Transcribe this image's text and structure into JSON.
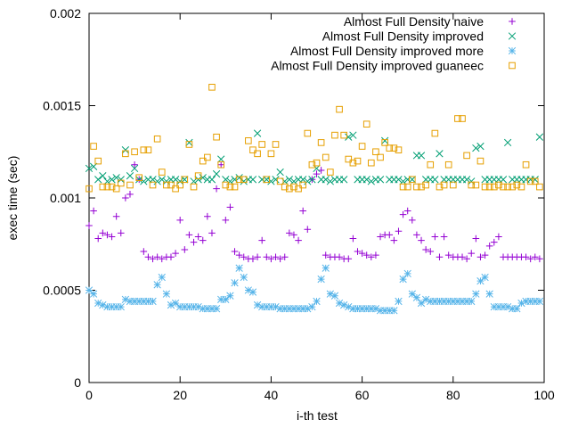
{
  "chart_data": {
    "type": "scatter",
    "title": "",
    "xlabel": "i-th test",
    "ylabel": "exec time (sec)",
    "xlim": [
      0,
      100
    ],
    "ylim": [
      0,
      0.002
    ],
    "x_ticks": [
      0,
      20,
      40,
      60,
      80,
      100
    ],
    "x_tick_labels": [
      "0",
      "20",
      "40",
      "60",
      "80",
      "100"
    ],
    "y_ticks": [
      0,
      0.0005,
      0.001,
      0.0015,
      0.002
    ],
    "y_tick_labels": [
      "0",
      "0.0005",
      "0.001",
      "0.0015",
      "0.002"
    ],
    "legend_position": "top-right",
    "grid": false,
    "series": [
      {
        "name": "Almost Full Density naive",
        "marker": "plus",
        "color": "#9400D3",
        "values": [
          0.00085,
          0.00093,
          0.00078,
          0.00081,
          0.0008,
          0.00079,
          0.0009,
          0.00081,
          0.001,
          0.00102,
          0.00118,
          0.0011,
          0.00071,
          0.00068,
          0.00067,
          0.00068,
          0.00067,
          0.00068,
          0.00068,
          0.0007,
          0.00088,
          0.00072,
          0.0008,
          0.00076,
          0.00079,
          0.00077,
          0.0009,
          0.00081,
          0.00105,
          0.00118,
          0.00088,
          0.00095,
          0.00071,
          0.00069,
          0.00068,
          0.00067,
          0.00067,
          0.00068,
          0.00077,
          0.00068,
          0.00067,
          0.00068,
          0.00067,
          0.00068,
          0.00081,
          0.0008,
          0.00077,
          0.00093,
          0.00083,
          0.0011,
          0.00113,
          0.00115,
          0.00069,
          0.00068,
          0.00068,
          0.00068,
          0.00067,
          0.00067,
          0.00078,
          0.00071,
          0.0007,
          0.00069,
          0.00068,
          0.00069,
          0.00079,
          0.0008,
          0.0008,
          0.00077,
          0.00082,
          0.00091,
          0.00093,
          0.00088,
          0.0008,
          0.00077,
          0.00072,
          0.00071,
          0.00079,
          0.00068,
          0.00079,
          0.00069,
          0.00068,
          0.00068,
          0.00068,
          0.00067,
          0.0007,
          0.00078,
          0.00068,
          0.00069,
          0.00074,
          0.00076,
          0.00079,
          0.00068,
          0.00068,
          0.00068,
          0.00068,
          0.00068,
          0.00068,
          0.00067,
          0.00068,
          0.00067
        ]
      },
      {
        "name": "Almost Full Density improved",
        "marker": "cross",
        "color": "#009E73",
        "values": [
          0.00116,
          0.00117,
          0.0011,
          0.00112,
          0.00109,
          0.0011,
          0.00111,
          0.0011,
          0.00126,
          0.00112,
          0.00116,
          0.0011,
          0.00109,
          0.0011,
          0.0011,
          0.00109,
          0.0011,
          0.00109,
          0.0011,
          0.0011,
          0.00109,
          0.0011,
          0.0013,
          0.00109,
          0.0011,
          0.00111,
          0.0011,
          0.0011,
          0.00113,
          0.00121,
          0.0011,
          0.00109,
          0.0011,
          0.00111,
          0.00109,
          0.0011,
          0.0011,
          0.00135,
          0.0011,
          0.0011,
          0.00109,
          0.0011,
          0.00114,
          0.00109,
          0.0011,
          0.00109,
          0.0011,
          0.0011,
          0.00109,
          0.0011,
          0.00116,
          0.0011,
          0.0011,
          0.00109,
          0.0011,
          0.0011,
          0.0011,
          0.00133,
          0.00134,
          0.0011,
          0.0011,
          0.0011,
          0.00109,
          0.0011,
          0.0011,
          0.00131,
          0.0011,
          0.0011,
          0.0011,
          0.00109,
          0.0011,
          0.0011,
          0.00123,
          0.00123,
          0.0011,
          0.0011,
          0.0011,
          0.00124,
          0.0011,
          0.0011,
          0.0011,
          0.0011,
          0.0011,
          0.0011,
          0.00109,
          0.00127,
          0.00128,
          0.0011,
          0.0011,
          0.0011,
          0.0011,
          0.0011,
          0.0013,
          0.0011,
          0.0011,
          0.0011,
          0.0011,
          0.0011,
          0.0011,
          0.00133
        ]
      },
      {
        "name": "Almost Full Density improved more",
        "marker": "star",
        "color": "#56B4E9",
        "values": [
          0.0005,
          0.00048,
          0.00043,
          0.00042,
          0.00041,
          0.00041,
          0.00041,
          0.00041,
          0.00045,
          0.00044,
          0.00044,
          0.00044,
          0.00044,
          0.00044,
          0.00044,
          0.00053,
          0.00057,
          0.00048,
          0.00042,
          0.00043,
          0.00041,
          0.00041,
          0.00041,
          0.00041,
          0.00041,
          0.0004,
          0.0004,
          0.0004,
          0.0004,
          0.00045,
          0.00045,
          0.00047,
          0.00054,
          0.00062,
          0.00057,
          0.0005,
          0.00049,
          0.00042,
          0.00041,
          0.00041,
          0.00041,
          0.00041,
          0.0004,
          0.0004,
          0.0004,
          0.0004,
          0.0004,
          0.0004,
          0.0004,
          0.00041,
          0.00044,
          0.00056,
          0.00062,
          0.00048,
          0.00047,
          0.00043,
          0.00042,
          0.00041,
          0.0004,
          0.0004,
          0.0004,
          0.0004,
          0.0004,
          0.0004,
          0.00039,
          0.00039,
          0.00039,
          0.00039,
          0.00044,
          0.00056,
          0.00059,
          0.00048,
          0.00046,
          0.00043,
          0.00045,
          0.00044,
          0.00044,
          0.00044,
          0.00044,
          0.00044,
          0.00044,
          0.00044,
          0.00044,
          0.00044,
          0.00044,
          0.00048,
          0.00055,
          0.00057,
          0.00048,
          0.00041,
          0.00041,
          0.00041,
          0.00041,
          0.0004,
          0.0004,
          0.00043,
          0.00044,
          0.00044,
          0.00044,
          0.00044
        ]
      },
      {
        "name": "Almost Full Density improved guaneec",
        "marker": "square",
        "color": "#E69F00",
        "values": [
          0.00105,
          0.00128,
          0.0012,
          0.00106,
          0.00106,
          0.00106,
          0.00105,
          0.00108,
          0.00124,
          0.00107,
          0.00125,
          0.00111,
          0.00126,
          0.00126,
          0.00107,
          0.00132,
          0.00114,
          0.00107,
          0.00107,
          0.00105,
          0.00107,
          0.0011,
          0.00129,
          0.00106,
          0.00112,
          0.0012,
          0.00122,
          0.0016,
          0.00133,
          0.00118,
          0.00107,
          0.00106,
          0.00106,
          0.0011,
          0.0011,
          0.00131,
          0.00126,
          0.00124,
          0.00129,
          0.0011,
          0.00124,
          0.00129,
          0.00109,
          0.00106,
          0.00105,
          0.00106,
          0.00105,
          0.00107,
          0.00135,
          0.00118,
          0.00119,
          0.0013,
          0.00122,
          0.00114,
          0.00134,
          0.00148,
          0.00134,
          0.00121,
          0.00119,
          0.0012,
          0.00128,
          0.0014,
          0.00119,
          0.00125,
          0.00122,
          0.0013,
          0.00127,
          0.00127,
          0.00126,
          0.00106,
          0.00106,
          0.0011,
          0.00106,
          0.00106,
          0.00107,
          0.00118,
          0.00135,
          0.00106,
          0.00107,
          0.00118,
          0.00107,
          0.00143,
          0.00143,
          0.00123,
          0.00107,
          0.00107,
          0.0012,
          0.00106,
          0.00106,
          0.00106,
          0.00107,
          0.00106,
          0.00106,
          0.00106,
          0.00107,
          0.00106,
          0.00118,
          0.00109,
          0.00109,
          0.00106
        ]
      }
    ]
  }
}
